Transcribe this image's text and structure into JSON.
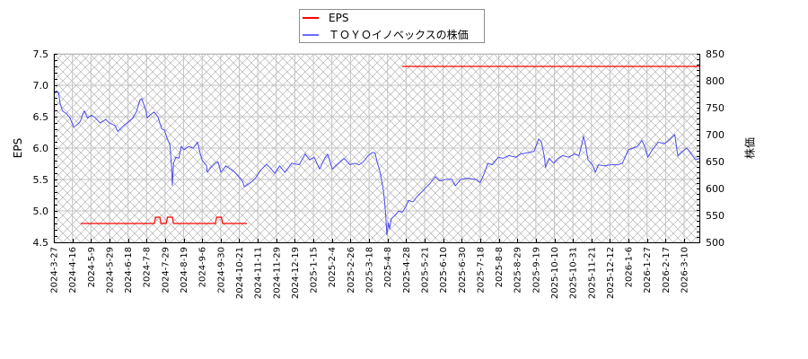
{
  "chart_data": {
    "type": "line",
    "title": "",
    "xlabel": "",
    "ylabel": "EPS",
    "ylabel_right": "株価",
    "grid": true,
    "legend_position": "top center",
    "legend": [
      {
        "label": "EPS",
        "color": "#ff0000"
      },
      {
        "label": "ＴＯＹＯイノベックスの株価",
        "color": "#4a4aef"
      }
    ],
    "x_axis_unit": "trading days since 2024-3-27",
    "x_range_days": [
      0,
      487.5
    ],
    "x_tick_step_days": 14,
    "x_tick_labels": [
      "2024-3-27",
      "2024-4-16",
      "2024-5-9",
      "2024-5-29",
      "2024-6-18",
      "2024-7-8",
      "2024-7-29",
      "2024-8-19",
      "2024-9-6",
      "2024-9-30",
      "2024-10-21",
      "2024-11-11",
      "2024-11-29",
      "2024-12-19",
      "2025-1-15",
      "2025-2-4",
      "2025-2-26",
      "2025-3-18",
      "2025-4-8",
      "2025-4-28",
      "2025-5-21",
      "2025-6-10",
      "2025-6-30",
      "2025-7-18",
      "2025-8-8",
      "2025-8-29",
      "2025-9-19",
      "2025-10-10",
      "2025-10-31",
      "2025-11-21",
      "2025-12-12",
      "2026-1-6",
      "2026-1-27",
      "2026-2-17",
      "2026-3-10"
    ],
    "ylim": [
      4.5,
      7.5
    ],
    "yticks": [
      "4.5",
      "5.0",
      "5.5",
      "6.0",
      "6.5",
      "7.0",
      "7.5"
    ],
    "ylim_right": [
      500,
      850
    ],
    "yticks_right": [
      "500",
      "550",
      "600",
      "650",
      "700",
      "750",
      "800",
      "850"
    ],
    "series": [
      {
        "name": "EPS",
        "axis": "left",
        "color": "#ff0000",
        "segments": [
          [
            [
              20.3,
              4.8
            ],
            [
              75.9,
              4.8
            ],
            [
              76.8,
              4.9
            ],
            [
              80.0,
              4.9
            ],
            [
              80.9,
              4.8
            ],
            [
              84.9,
              4.8
            ],
            [
              85.8,
              4.9
            ],
            [
              89.5,
              4.9
            ],
            [
              90.4,
              4.8
            ],
            [
              122.0,
              4.8
            ],
            [
              122.9,
              4.9
            ],
            [
              126.6,
              4.9
            ],
            [
              127.5,
              4.8
            ],
            [
              145.8,
              4.8
            ]
          ],
          [
            [
              263.1,
              7.3
            ],
            [
              487.5,
              7.3
            ]
          ]
        ]
      },
      {
        "name": "ＴＯＹＯイノベックスの株価",
        "axis": "right",
        "color": "#4a4aef",
        "points": [
          [
            0,
            775
          ],
          [
            2,
            781
          ],
          [
            3.6,
            778
          ],
          [
            4.7,
            758
          ],
          [
            6.6,
            744
          ],
          [
            9.5,
            739
          ],
          [
            12.2,
            731
          ],
          [
            14.9,
            714
          ],
          [
            17.8,
            719
          ],
          [
            20.1,
            725
          ],
          [
            21.9,
            739
          ],
          [
            23.1,
            744
          ],
          [
            25.3,
            731
          ],
          [
            28.5,
            736
          ],
          [
            31.4,
            731
          ],
          [
            34.8,
            722
          ],
          [
            39.3,
            728
          ],
          [
            41.6,
            722
          ],
          [
            46.1,
            717
          ],
          [
            48.3,
            706
          ],
          [
            52.9,
            717
          ],
          [
            56.9,
            725
          ],
          [
            59.7,
            731
          ],
          [
            62.6,
            744
          ],
          [
            64.9,
            764
          ],
          [
            66.4,
            767
          ],
          [
            69.2,
            747
          ],
          [
            70.5,
            731
          ],
          [
            72.5,
            736
          ],
          [
            75.7,
            742
          ],
          [
            78.6,
            733
          ],
          [
            81.4,
            711
          ],
          [
            83.6,
            708
          ],
          [
            85.4,
            694
          ],
          [
            87.7,
            681
          ],
          [
            88.8,
            642
          ],
          [
            89.5,
            606
          ],
          [
            90.4,
            647
          ],
          [
            92.2,
            658
          ],
          [
            94.4,
            656
          ],
          [
            96.1,
            678
          ],
          [
            98.3,
            672
          ],
          [
            101.7,
            678
          ],
          [
            105.1,
            675
          ],
          [
            108.5,
            686
          ],
          [
            110.3,
            667
          ],
          [
            111.9,
            653
          ],
          [
            115.3,
            642
          ],
          [
            115.9,
            630
          ],
          [
            118.6,
            639
          ],
          [
            122.0,
            647
          ],
          [
            123.9,
            650
          ],
          [
            126.1,
            630
          ],
          [
            130.0,
            642
          ],
          [
            136.7,
            630
          ],
          [
            142.4,
            614
          ],
          [
            143.9,
            603
          ],
          [
            149.2,
            612
          ],
          [
            152.5,
            620
          ],
          [
            155.9,
            633
          ],
          [
            160.5,
            645
          ],
          [
            163.9,
            637
          ],
          [
            166.8,
            628
          ],
          [
            170.6,
            642
          ],
          [
            174.4,
            630
          ],
          [
            179.7,
            647
          ],
          [
            185.3,
            644
          ],
          [
            189.8,
            664
          ],
          [
            193.2,
            653
          ],
          [
            196.6,
            658
          ],
          [
            200.7,
            636
          ],
          [
            204.5,
            656
          ],
          [
            206.8,
            664
          ],
          [
            210.2,
            636
          ],
          [
            213.6,
            644
          ],
          [
            219.2,
            656
          ],
          [
            223.7,
            644
          ],
          [
            227.1,
            647
          ],
          [
            230.5,
            644
          ],
          [
            233.9,
            650
          ],
          [
            237.3,
            661
          ],
          [
            240.7,
            667
          ],
          [
            242.5,
            666
          ],
          [
            244.1,
            650
          ],
          [
            246.3,
            631
          ],
          [
            248.6,
            600
          ],
          [
            249.7,
            578
          ],
          [
            250.8,
            544
          ],
          [
            251.5,
            514
          ],
          [
            252.7,
            536
          ],
          [
            253.6,
            525
          ],
          [
            254.9,
            544
          ],
          [
            257.6,
            550
          ],
          [
            260.5,
            558
          ],
          [
            263.3,
            556
          ],
          [
            266.0,
            567
          ],
          [
            267.8,
            578
          ],
          [
            271.2,
            575
          ],
          [
            274.6,
            586
          ],
          [
            278.0,
            594
          ],
          [
            281.4,
            603
          ],
          [
            283.6,
            608
          ],
          [
            288.1,
            622
          ],
          [
            291.5,
            614
          ],
          [
            296.1,
            617
          ],
          [
            300.5,
            617
          ],
          [
            303.3,
            605
          ],
          [
            307.3,
            617
          ],
          [
            311.9,
            619
          ],
          [
            318.6,
            617
          ],
          [
            322.0,
            611
          ],
          [
            325.4,
            630
          ],
          [
            327.7,
            647
          ],
          [
            331.1,
            644
          ],
          [
            335.6,
            658
          ],
          [
            339.0,
            656
          ],
          [
            343.5,
            661
          ],
          [
            349.2,
            658
          ],
          [
            352.5,
            664
          ],
          [
            359.3,
            667
          ],
          [
            362.7,
            669
          ],
          [
            366.1,
            692
          ],
          [
            368.3,
            686
          ],
          [
            370.6,
            656
          ],
          [
            371.3,
            639
          ],
          [
            374.0,
            656
          ],
          [
            377.4,
            647
          ],
          [
            380.8,
            656
          ],
          [
            384.2,
            661
          ],
          [
            388.7,
            658
          ],
          [
            393.2,
            664
          ],
          [
            396.6,
            661
          ],
          [
            398.8,
            683
          ],
          [
            400.0,
            697
          ],
          [
            401.4,
            683
          ],
          [
            403.4,
            653
          ],
          [
            406.8,
            644
          ],
          [
            409.0,
            630
          ],
          [
            411.3,
            644
          ],
          [
            415.8,
            642
          ],
          [
            420.3,
            644
          ],
          [
            425.9,
            644
          ],
          [
            429.4,
            647
          ],
          [
            433.9,
            672
          ],
          [
            437.3,
            675
          ],
          [
            440.7,
            678
          ],
          [
            444.1,
            689
          ],
          [
            446.3,
            678
          ],
          [
            448.6,
            658
          ],
          [
            452.0,
            672
          ],
          [
            456.5,
            686
          ],
          [
            461.0,
            683
          ],
          [
            464.4,
            689
          ],
          [
            468.9,
            700
          ],
          [
            471.2,
            661
          ],
          [
            474.6,
            669
          ],
          [
            478.0,
            675
          ],
          [
            481.4,
            664
          ],
          [
            484.7,
            653
          ],
          [
            487.5,
            656
          ]
        ]
      }
    ]
  }
}
